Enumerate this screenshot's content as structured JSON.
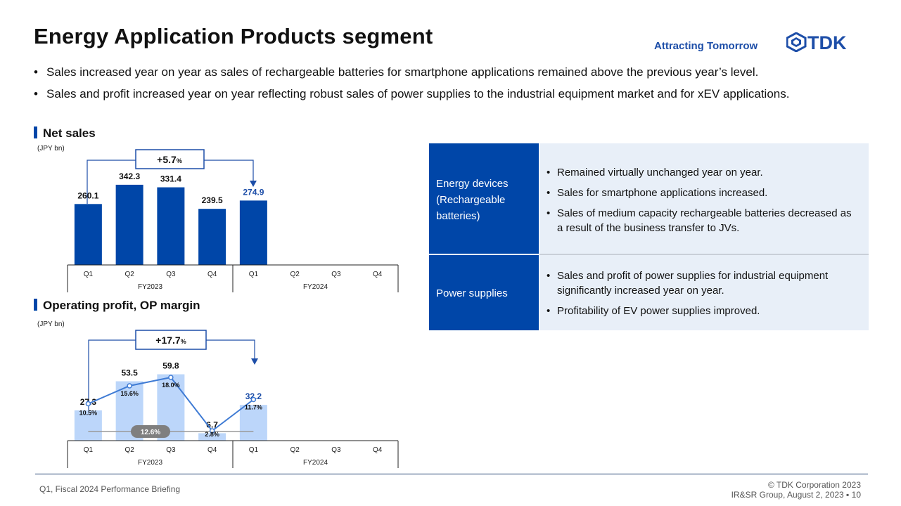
{
  "title": "Energy Application Products segment",
  "tagline": "Attracting Tomorrow",
  "logo_text": "TDK",
  "bullets": [
    "Sales increased year on year as sales of rechargeable batteries for smartphone applications remained above the previous year’s level.",
    "Sales and profit increased year on year reflecting robust sales of power supplies to the industrial equipment market and for xEV applications."
  ],
  "net_sales": {
    "section_title": "Net sales",
    "unit": "(JPY bn)",
    "change_label": "+5.7",
    "change_pct": "%"
  },
  "op_profit": {
    "section_title": "Operating profit, OP margin",
    "unit": "(JPY bn)",
    "change_label": "+17.7",
    "change_pct": "%",
    "avg_label": "12.6%"
  },
  "chart_data": [
    {
      "type": "bar",
      "title": "Net sales",
      "ylabel": "(JPY bn)",
      "categories": [
        "Q1",
        "Q2",
        "Q3",
        "Q4",
        "Q1",
        "Q2",
        "Q3",
        "Q4"
      ],
      "groups": [
        "FY2023",
        "FY2024"
      ],
      "values": [
        260.1,
        342.3,
        331.4,
        239.5,
        274.9,
        null,
        null,
        null
      ],
      "value_labels": [
        "260.1",
        "342.3",
        "331.4",
        "239.5",
        "274.9",
        "",
        "",
        ""
      ],
      "ylim": [
        0,
        450
      ],
      "colors": {
        "bar": "#0046a8",
        "highlight_label": "#1d4ea8",
        "arrow": "#1d4ea8"
      }
    },
    {
      "type": "bar",
      "title": "Operating profit, OP margin",
      "ylabel": "(JPY bn)",
      "categories": [
        "Q1",
        "Q2",
        "Q3",
        "Q4",
        "Q1",
        "Q2",
        "Q3",
        "Q4"
      ],
      "groups": [
        "FY2023",
        "FY2024"
      ],
      "series": [
        {
          "name": "Operating profit",
          "values": [
            27.3,
            53.5,
            59.8,
            6.7,
            32.2,
            null,
            null,
            null
          ],
          "labels": [
            "27.3",
            "53.5",
            "59.8",
            "6.7",
            "32.2",
            "",
            "",
            ""
          ]
        },
        {
          "name": "OP margin",
          "values": [
            10.5,
            15.6,
            18.0,
            2.8,
            11.7,
            null,
            null,
            null
          ],
          "labels": [
            "10.5%",
            "15.6%",
            "18.0%",
            "2.8%",
            "11.7%",
            "",
            "",
            ""
          ]
        }
      ],
      "ylim": [
        0,
        95
      ],
      "margin_ylim": [
        0,
        30
      ],
      "colors": {
        "bar": "#bcd6fa",
        "line": "#3f7bd4",
        "avg_line": "#9a9a9a",
        "avg_badge": "#7f7f7f"
      }
    }
  ],
  "table": {
    "rows": [
      {
        "label": "Energy devices (Rechargeable batteries)",
        "points": [
          "Remained virtually unchanged year on year.",
          "Sales for smartphone applications increased.",
          "Sales of medium capacity rechargeable batteries decreased as a result of the business transfer to JVs."
        ]
      },
      {
        "label": "Power supplies",
        "points": [
          "Sales and profit of power supplies for industrial equipment significantly increased year on year.",
          "Profitability of EV power supplies improved."
        ]
      }
    ]
  },
  "footer": {
    "left": "Q1, Fiscal 2024 Performance Briefing",
    "copyright": "© TDK Corporation 2023",
    "dept": "IR&SR Group, August 2, 2023 ▪ 10"
  }
}
